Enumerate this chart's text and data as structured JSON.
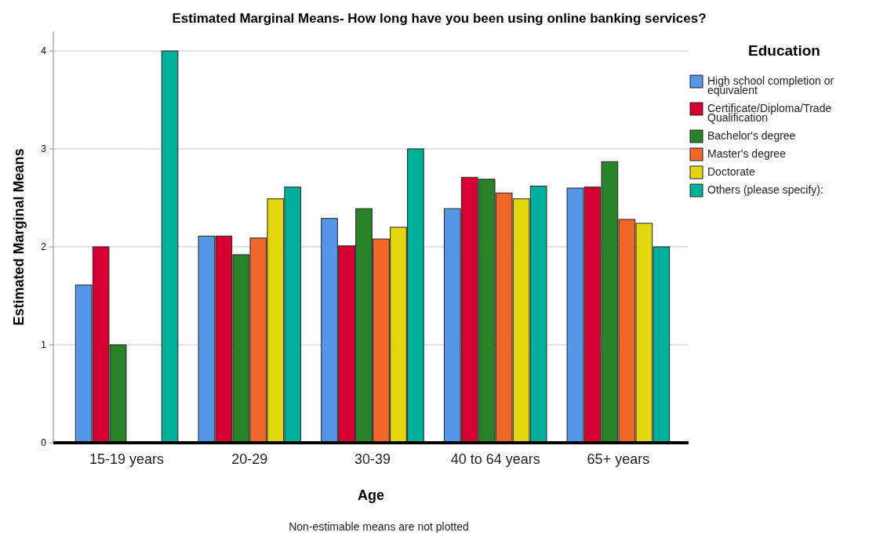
{
  "chart_data": {
    "type": "bar",
    "title": "Estimated Marginal Means- How long have you been using online banking services?",
    "xlabel": "Age",
    "ylabel": "Estimated Marginal Means",
    "legend_title": "Education",
    "annotations": [
      "Non-estimable means are not plotted"
    ],
    "categories": [
      "15-19 years",
      "20-29",
      "30-39",
      "40 to 64 years",
      "65+ years"
    ],
    "series": [
      {
        "name": "High school completion or equivalent",
        "color": "#5596e6",
        "values": [
          1.61,
          2.11,
          2.29,
          2.39,
          2.6
        ]
      },
      {
        "name": "Certificate/Diploma/Trade Qualification",
        "color": "#d60032",
        "values": [
          2.0,
          2.11,
          2.01,
          2.71,
          2.61
        ]
      },
      {
        "name": "Bachelor's degree",
        "color": "#2a8228",
        "values": [
          1.0,
          1.92,
          2.39,
          2.69,
          2.87
        ]
      },
      {
        "name": "Master's degree",
        "color": "#f0672a",
        "values": [
          null,
          2.09,
          2.08,
          2.55,
          2.28
        ]
      },
      {
        "name": "Doctorate",
        "color": "#e2d60e",
        "values": [
          null,
          2.49,
          2.2,
          2.49,
          2.24
        ]
      },
      {
        "name": "Others (please specify):",
        "color": "#00b09b",
        "values": [
          4.0,
          2.61,
          3.0,
          2.62,
          2.0
        ]
      }
    ],
    "ylim": [
      0,
      4.2
    ],
    "yticks": [
      0,
      1,
      2,
      3,
      4
    ],
    "grid": "y",
    "legend": "right"
  }
}
